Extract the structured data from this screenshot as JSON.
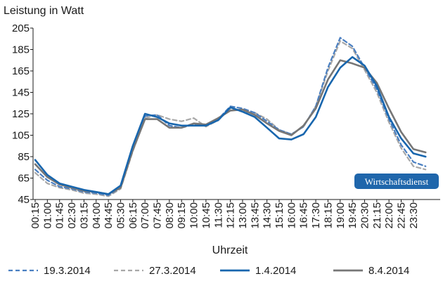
{
  "chart_data": {
    "type": "line",
    "ylabel": "Leistung in Watt",
    "xlabel": "Uhrzeit",
    "ylim": [
      45,
      205
    ],
    "yticks": [
      45,
      65,
      85,
      105,
      125,
      145,
      165,
      185,
      205
    ],
    "grid": false,
    "legend_position": "bottom",
    "badge": "Wirtschaftsdienst",
    "xtick_labels": [
      "00:15",
      "01:00",
      "01:45",
      "02:30",
      "03:15",
      "04:00",
      "04:45",
      "05:30",
      "06:15",
      "07:00",
      "07:45",
      "08:30",
      "09:15",
      "10:00",
      "10:45",
      "11:30",
      "12:15",
      "13:00",
      "13:45",
      "14:30",
      "15:15",
      "16:00",
      "16:45",
      "17:30",
      "18:15",
      "19:00",
      "19:45",
      "20:30",
      "21:15",
      "22:00",
      "22:45",
      "23:30"
    ],
    "x": [
      "00:15",
      "01:00",
      "01:45",
      "02:30",
      "03:15",
      "04:00",
      "04:45",
      "05:30",
      "06:15",
      "07:00",
      "07:45",
      "08:30",
      "09:15",
      "10:00",
      "10:45",
      "11:30",
      "12:15",
      "13:00",
      "13:45",
      "14:30",
      "15:15",
      "16:00",
      "16:45",
      "17:30",
      "18:15",
      "19:00",
      "19:45",
      "20:30",
      "21:15",
      "22:00",
      "22:45",
      "23:30",
      "24:00"
    ],
    "series": [
      {
        "name": "19.3.2014",
        "style": "dashed",
        "color": "#4a7fc1",
        "values": [
          73,
          63,
          57,
          55,
          52,
          51,
          49,
          56,
          92,
          123,
          124,
          114,
          112,
          115,
          114,
          120,
          132,
          130,
          126,
          118,
          110,
          106,
          113,
          132,
          168,
          196,
          188,
          168,
          148,
          120,
          96,
          80,
          76
        ]
      },
      {
        "name": "27.3.2014",
        "style": "dashed",
        "color": "#a8a8a8",
        "values": [
          70,
          60,
          56,
          54,
          51,
          50,
          48,
          55,
          90,
          121,
          124,
          120,
          118,
          121,
          113,
          119,
          130,
          127,
          126,
          120,
          110,
          106,
          113,
          132,
          165,
          193,
          186,
          166,
          145,
          117,
          93,
          76,
          73
        ]
      },
      {
        "name": "1.4.2014",
        "style": "solid",
        "color": "#1866ae",
        "values": [
          82,
          68,
          60,
          57,
          54,
          52,
          50,
          58,
          95,
          125,
          122,
          116,
          114,
          114,
          114,
          119,
          131,
          127,
          122,
          112,
          102,
          101,
          106,
          122,
          150,
          168,
          178,
          170,
          151,
          122,
          102,
          88,
          85
        ]
      },
      {
        "name": "8.4.2014",
        "style": "solid",
        "color": "#767676",
        "values": [
          78,
          66,
          59,
          56,
          53,
          52,
          50,
          56,
          91,
          120,
          120,
          112,
          112,
          116,
          115,
          121,
          128,
          129,
          124,
          116,
          109,
          105,
          114,
          130,
          157,
          175,
          172,
          168,
          154,
          130,
          108,
          92,
          89
        ]
      }
    ]
  }
}
